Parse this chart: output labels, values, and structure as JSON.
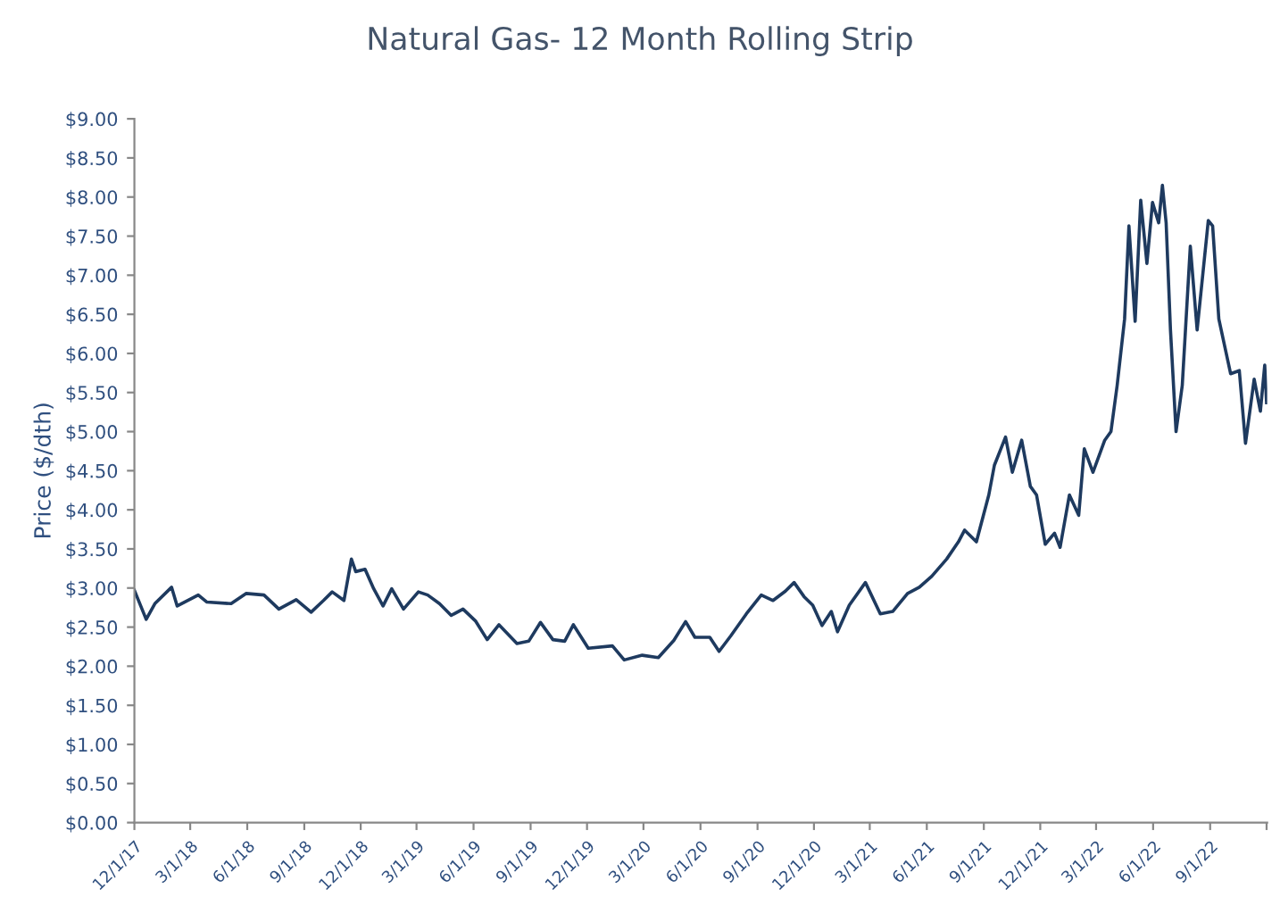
{
  "chart_data": {
    "type": "line",
    "title": "Natural Gas- 12 Month Rolling Strip",
    "ylabel": "Price ($/dth)",
    "x": [
      "2017-12-01",
      "2017-12-20",
      "2018-01-03",
      "2018-01-30",
      "2018-02-08",
      "2018-03-14",
      "2018-03-28",
      "2018-05-06",
      "2018-05-30",
      "2018-06-28",
      "2018-07-22",
      "2018-08-19",
      "2018-09-12",
      "2018-10-02",
      "2018-10-16",
      "2018-11-04",
      "2018-11-16",
      "2018-11-23",
      "2018-12-08",
      "2018-12-22",
      "2019-01-06",
      "2019-01-20",
      "2019-02-08",
      "2019-03-04",
      "2019-03-19",
      "2019-04-07",
      "2019-04-26",
      "2019-05-15",
      "2019-06-04",
      "2019-06-23",
      "2019-07-12",
      "2019-08-10",
      "2019-08-29",
      "2019-09-17",
      "2019-10-07",
      "2019-10-26",
      "2019-11-09",
      "2019-12-03",
      "2020-01-11",
      "2020-01-30",
      "2020-02-28",
      "2020-03-25",
      "2020-04-19",
      "2020-05-08",
      "2020-05-23",
      "2020-06-16",
      "2020-07-01",
      "2020-07-20",
      "2020-08-14",
      "2020-09-07",
      "2020-09-26",
      "2020-10-16",
      "2020-10-30",
      "2020-11-15",
      "2020-11-29",
      "2020-12-14",
      "2020-12-29",
      "2021-01-08",
      "2021-01-27",
      "2021-02-22",
      "2021-03-18",
      "2021-04-07",
      "2021-05-01",
      "2021-05-20",
      "2021-06-09",
      "2021-07-03",
      "2021-07-22",
      "2021-08-01",
      "2021-08-20",
      "2021-09-09",
      "2021-09-18",
      "2021-10-06",
      "2021-10-17",
      "2021-11-01",
      "2021-11-15",
      "2021-11-25",
      "2021-12-09",
      "2021-12-24",
      "2022-01-02",
      "2022-01-17",
      "2022-02-01",
      "2022-02-10",
      "2022-02-24",
      "2022-03-15",
      "2022-03-25",
      "2022-04-04",
      "2022-04-16",
      "2022-04-23",
      "2022-05-03",
      "2022-05-12",
      "2022-05-22",
      "2022-05-31",
      "2022-06-10",
      "2022-06-16",
      "2022-06-22",
      "2022-06-29",
      "2022-07-08",
      "2022-07-18",
      "2022-07-31",
      "2022-08-11",
      "2022-08-29",
      "2022-09-05",
      "2022-09-15",
      "2022-10-04",
      "2022-10-18",
      "2022-10-28",
      "2022-11-11",
      "2022-11-21",
      "2022-11-28",
      "2022-12-01"
    ],
    "series": [
      {
        "color": "#1e3a5f",
        "values": [
          2.97,
          2.6,
          2.8,
          3.01,
          2.77,
          2.91,
          2.82,
          2.8,
          2.93,
          2.91,
          2.73,
          2.85,
          2.69,
          2.84,
          2.95,
          2.84,
          3.37,
          3.21,
          3.24,
          2.99,
          2.77,
          2.99,
          2.73,
          2.95,
          2.91,
          2.8,
          2.65,
          2.73,
          2.58,
          2.34,
          2.53,
          2.29,
          2.32,
          2.56,
          2.34,
          2.32,
          2.53,
          2.23,
          2.26,
          2.08,
          2.14,
          2.11,
          2.33,
          2.57,
          2.37,
          2.37,
          2.19,
          2.39,
          2.67,
          2.91,
          2.84,
          2.96,
          3.07,
          2.89,
          2.78,
          2.52,
          2.7,
          2.44,
          2.78,
          3.07,
          2.67,
          2.7,
          2.93,
          3.01,
          3.15,
          3.37,
          3.59,
          3.74,
          3.59,
          4.19,
          4.57,
          4.93,
          4.48,
          4.89,
          4.3,
          4.19,
          3.56,
          3.7,
          3.52,
          4.19,
          3.93,
          4.78,
          4.48,
          4.89,
          5.0,
          5.59,
          6.44,
          7.63,
          6.41,
          7.96,
          7.15,
          7.93,
          7.67,
          8.15,
          7.67,
          6.3,
          5.0,
          5.59,
          7.37,
          6.3,
          7.7,
          7.63,
          6.44,
          5.74,
          5.78,
          4.85,
          5.67,
          5.26,
          5.85,
          5.37
        ]
      }
    ],
    "xlim": [
      "2017-12-01",
      "2022-12-02"
    ],
    "xticks": [
      {
        "value": "2017-12-01",
        "label": "12/1/17"
      },
      {
        "value": "2018-03-01",
        "label": "3/1/18"
      },
      {
        "value": "2018-06-01",
        "label": "6/1/18"
      },
      {
        "value": "2018-09-01",
        "label": "9/1/18"
      },
      {
        "value": "2018-12-01",
        "label": "12/1/18"
      },
      {
        "value": "2019-03-01",
        "label": "3/1/19"
      },
      {
        "value": "2019-06-01",
        "label": "6/1/19"
      },
      {
        "value": "2019-09-01",
        "label": "9/1/19"
      },
      {
        "value": "2019-12-01",
        "label": "12/1/19"
      },
      {
        "value": "2020-03-01",
        "label": "3/1/20"
      },
      {
        "value": "2020-06-01",
        "label": "6/1/20"
      },
      {
        "value": "2020-09-01",
        "label": "9/1/20"
      },
      {
        "value": "2020-12-01",
        "label": "12/1/20"
      },
      {
        "value": "2021-03-01",
        "label": "3/1/21"
      },
      {
        "value": "2021-06-01",
        "label": "6/1/21"
      },
      {
        "value": "2021-09-01",
        "label": "9/1/21"
      },
      {
        "value": "2021-12-01",
        "label": "12/1/21"
      },
      {
        "value": "2022-03-01",
        "label": "3/1/22"
      },
      {
        "value": "2022-06-01",
        "label": "6/1/22"
      },
      {
        "value": "2022-09-01",
        "label": "9/1/22"
      },
      {
        "value": "2022-12-01",
        "label": null
      }
    ],
    "ylim": [
      0,
      9
    ],
    "yticks": [
      {
        "value": 0,
        "label": "$0.00"
      },
      {
        "value": 0.5,
        "label": "$0.50"
      },
      {
        "value": 1,
        "label": "$1.00"
      },
      {
        "value": 1.5,
        "label": "$1.50"
      },
      {
        "value": 2,
        "label": "$2.00"
      },
      {
        "value": 2.5,
        "label": "$2.50"
      },
      {
        "value": 3,
        "label": "$3.00"
      },
      {
        "value": 3.5,
        "label": "$3.50"
      },
      {
        "value": 4,
        "label": "$4.00"
      },
      {
        "value": 4.5,
        "label": "$4.50"
      },
      {
        "value": 5,
        "label": "$5.00"
      },
      {
        "value": 5.5,
        "label": "$5.50"
      },
      {
        "value": 6,
        "label": "$6.00"
      },
      {
        "value": 6.5,
        "label": "$6.50"
      },
      {
        "value": 7,
        "label": "$7.00"
      },
      {
        "value": 7.5,
        "label": "$7.50"
      },
      {
        "value": 8,
        "label": "$8.00"
      },
      {
        "value": 8.5,
        "label": "$8.50"
      },
      {
        "value": 9,
        "label": "$9.00"
      }
    ],
    "grid": false,
    "marker": "none",
    "line_style": "solid"
  }
}
